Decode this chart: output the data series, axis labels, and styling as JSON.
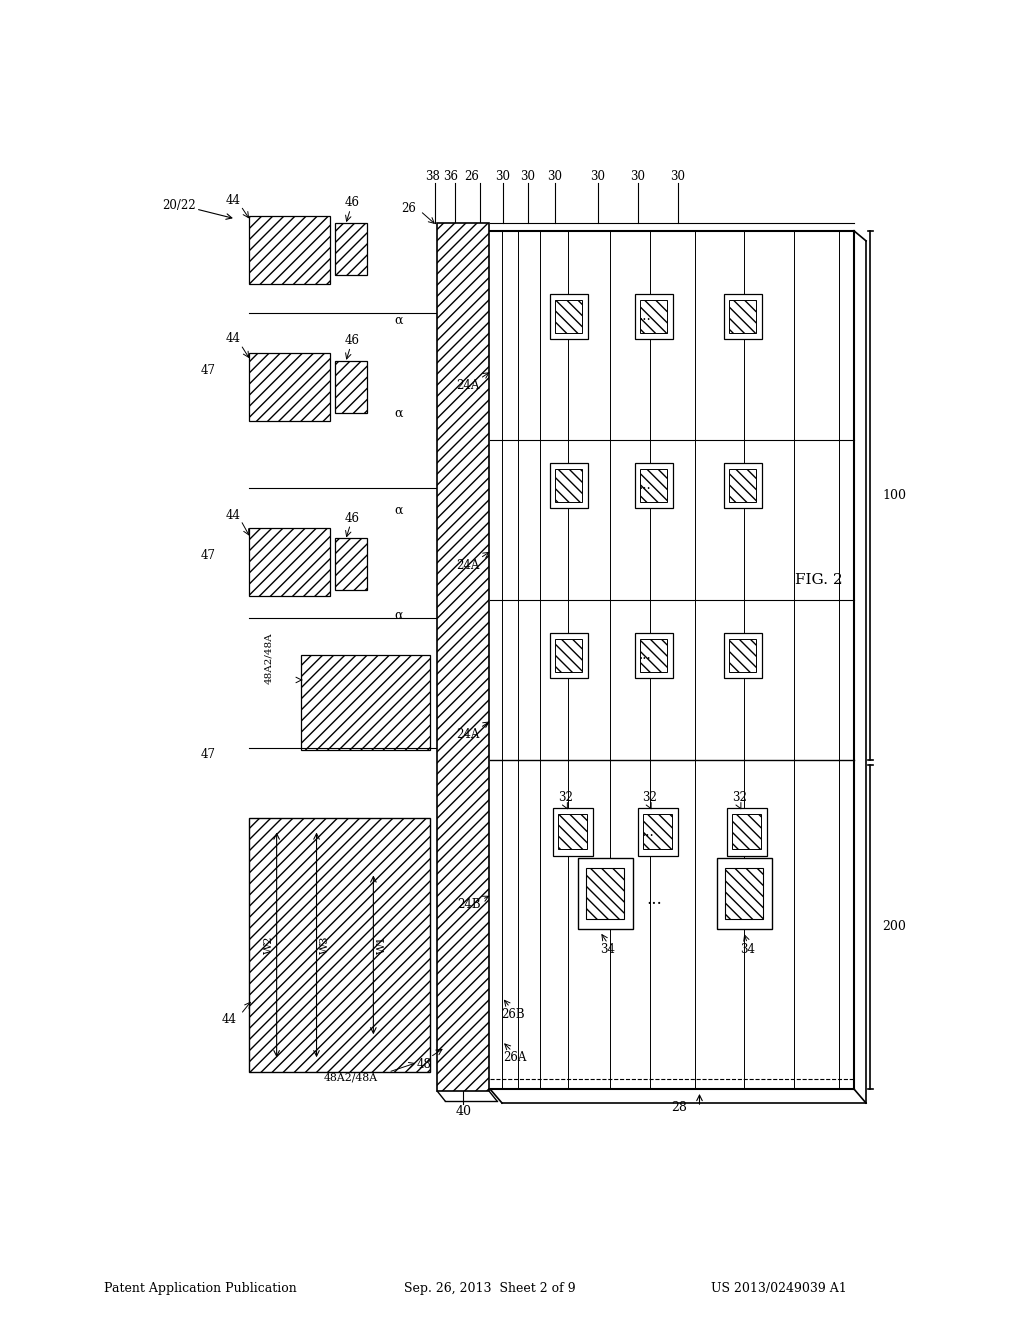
{
  "header_left": "Patent Application Publication",
  "header_center": "Sep. 26, 2013  Sheet 2 of 9",
  "header_right": "US 2013/0249039 A1",
  "figure_label": "FIG. 2",
  "bg_color": "#ffffff",
  "line_color": "#000000",
  "labels": {
    "20_22": "20/22",
    "26": "26",
    "28": "28",
    "36": "36",
    "38": "38",
    "40": "40",
    "44": "44",
    "46": "46",
    "47": "47",
    "48": "48",
    "24A": "24A",
    "24B": "24B",
    "26A": "26A",
    "26B": "26B",
    "48A2_48A": "48A2/48A",
    "W1": "W1",
    "W2": "W2",
    "W3": "W3",
    "alpha": "α",
    "100": "100",
    "200": "200",
    "32": "32",
    "34": "34",
    "30": "30",
    "fig2": "FIG. 2"
  }
}
